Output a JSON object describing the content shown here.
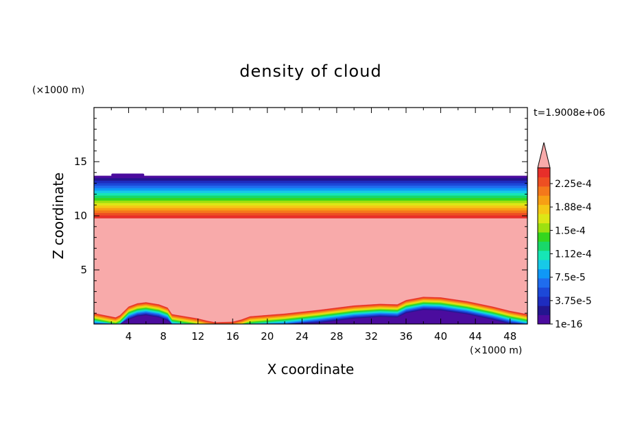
{
  "chart_data": {
    "type": "heatmap",
    "title": "density of cloud",
    "xlabel": "X coordinate",
    "ylabel": "Z coordinate",
    "x_unit": "(×1000 m)",
    "y_unit": "(×1000 m)",
    "time_label": "t=1.9008e+06",
    "xlim": [
      0,
      50
    ],
    "ylim": [
      0,
      20
    ],
    "x_ticks": [
      "4",
      "8",
      "12",
      "16",
      "20",
      "24",
      "28",
      "32",
      "36",
      "40",
      "44",
      "48"
    ],
    "y_ticks": [
      "5",
      "10",
      "15"
    ],
    "colorbar": {
      "labels": [
        "2.25e-4",
        "1.88e-4",
        "1.5e-4",
        "1.12e-4",
        "7.5e-5",
        "3.75e-5",
        "1e-16"
      ],
      "colors": [
        "#4b0c9e",
        "#23158f",
        "#1e2cbf",
        "#1c48d8",
        "#1f6cee",
        "#0f98f6",
        "#17c9e8",
        "#16e6b6",
        "#19d86a",
        "#34d61e",
        "#9de010",
        "#dde616",
        "#f4c816",
        "#f79f14",
        "#f4781b",
        "#ee4f22",
        "#e72f2a"
      ],
      "overflow_color": "#f8aaaa",
      "extend": "max"
    },
    "fill_color": "#f8aaaa",
    "upper_layer": {
      "bottom_km": 9.8,
      "top_km": 13.7,
      "bump": {
        "x_start_km": 2.0,
        "x_end_km": 5.8,
        "top_km": 13.9
      }
    },
    "lower_layer": {
      "top_profile": [
        [
          0,
          1.0
        ],
        [
          2.5,
          0.6
        ],
        [
          3.0,
          0.8
        ],
        [
          4.0,
          1.6
        ],
        [
          5.0,
          1.9
        ],
        [
          6.0,
          2.0
        ],
        [
          7.5,
          1.8
        ],
        [
          8.5,
          1.5
        ],
        [
          9.0,
          0.9
        ],
        [
          10.5,
          0.7
        ],
        [
          12.0,
          0.5
        ],
        [
          13.0,
          0.3
        ],
        [
          14.0,
          0.15
        ],
        [
          16.0,
          0.2
        ],
        [
          17.0,
          0.4
        ],
        [
          18.0,
          0.7
        ],
        [
          22.0,
          0.95
        ],
        [
          26.0,
          1.3
        ],
        [
          30.0,
          1.7
        ],
        [
          33.0,
          1.85
        ],
        [
          35.0,
          1.8
        ],
        [
          36.0,
          2.2
        ],
        [
          38.0,
          2.5
        ],
        [
          40.0,
          2.45
        ],
        [
          43.0,
          2.1
        ],
        [
          46.0,
          1.6
        ],
        [
          48.0,
          1.2
        ],
        [
          50.0,
          0.9
        ]
      ]
    }
  }
}
